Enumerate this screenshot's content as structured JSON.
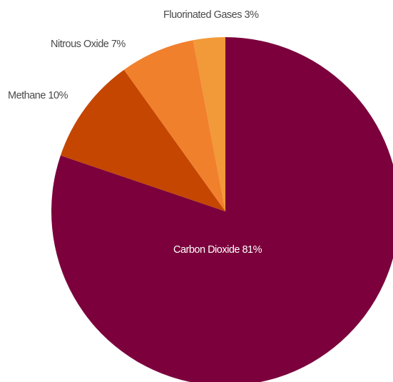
{
  "chart_data": {
    "type": "pie",
    "start_angle": "12 o'clock",
    "direction": "clockwise",
    "slices": [
      {
        "label": "Carbon Dioxide 81%",
        "name": "Carbon Dioxide",
        "value": 81,
        "color": "#7b003c",
        "label_position": "inside"
      },
      {
        "label": "Methane 10%",
        "name": "Methane",
        "value": 10,
        "color": "#c44601",
        "label_position": "outside"
      },
      {
        "label": "Nitrous Oxide 7%",
        "name": "Nitrous Oxide",
        "value": 7,
        "color": "#f1802d",
        "label_position": "outside"
      },
      {
        "label": "Fluorinated Gases 3%",
        "name": "Fluorinated Gases",
        "value": 3,
        "color": "#f2993a",
        "label_position": "outside"
      }
    ]
  }
}
